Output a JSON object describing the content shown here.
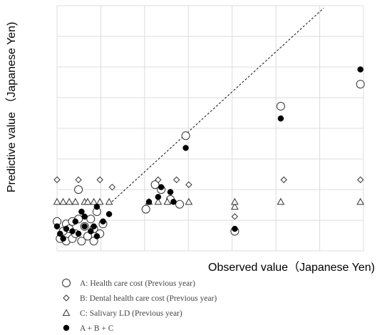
{
  "chart_data": {
    "type": "scatter",
    "title": "",
    "xlabel": "Observed value（Japanese Yen)",
    "ylabel": "Predictive value （Japanese Yen)",
    "xlim": [
      0,
      1
    ],
    "ylim": [
      0,
      1
    ],
    "grid": true,
    "legend_position": "bottom",
    "trend_line": {
      "style": "dashed",
      "x": [
        0.17,
        0.87
      ],
      "y": [
        0.19,
        0.99
      ]
    },
    "series": [
      {
        "name": "A: Health care cost (Previous year)",
        "marker": "open-circle",
        "points": [
          [
            0.0,
            0.12
          ],
          [
            0.01,
            0.05
          ],
          [
            0.02,
            0.08
          ],
          [
            0.03,
            0.11
          ],
          [
            0.03,
            0.04
          ],
          [
            0.04,
            0.09
          ],
          [
            0.05,
            0.05
          ],
          [
            0.05,
            0.12
          ],
          [
            0.06,
            0.07
          ],
          [
            0.07,
            0.13
          ],
          [
            0.07,
            0.25
          ],
          [
            0.08,
            0.04
          ],
          [
            0.09,
            0.1
          ],
          [
            0.1,
            0.06
          ],
          [
            0.11,
            0.13
          ],
          [
            0.12,
            0.09
          ],
          [
            0.12,
            0.04
          ],
          [
            0.13,
            0.16
          ],
          [
            0.14,
            0.07
          ],
          [
            0.15,
            0.11
          ],
          [
            0.29,
            0.17
          ],
          [
            0.32,
            0.27
          ],
          [
            0.34,
            0.25
          ],
          [
            0.37,
            0.21
          ],
          [
            0.4,
            0.19
          ],
          [
            0.42,
            0.47
          ],
          [
            0.58,
            0.08
          ],
          [
            0.73,
            0.59
          ],
          [
            0.99,
            0.68
          ]
        ]
      },
      {
        "name": "B: Dental health care cost (Previous year)",
        "marker": "open-diamond",
        "points": [
          [
            0.0,
            0.29
          ],
          [
            0.07,
            0.29
          ],
          [
            0.14,
            0.29
          ],
          [
            0.18,
            0.26
          ],
          [
            0.33,
            0.29
          ],
          [
            0.37,
            0.24
          ],
          [
            0.39,
            0.29
          ],
          [
            0.43,
            0.27
          ],
          [
            0.58,
            0.14
          ],
          [
            0.74,
            0.29
          ],
          [
            0.99,
            0.29
          ]
        ]
      },
      {
        "name": "C: Salivary LD (Previous year)",
        "marker": "open-triangle",
        "points": [
          [
            0.0,
            0.2
          ],
          [
            0.02,
            0.2
          ],
          [
            0.04,
            0.2
          ],
          [
            0.06,
            0.2
          ],
          [
            0.09,
            0.2
          ],
          [
            0.1,
            0.2
          ],
          [
            0.12,
            0.2
          ],
          [
            0.14,
            0.2
          ],
          [
            0.17,
            0.2
          ],
          [
            0.3,
            0.2
          ],
          [
            0.33,
            0.2
          ],
          [
            0.36,
            0.2
          ],
          [
            0.43,
            0.2
          ],
          [
            0.58,
            0.18
          ],
          [
            0.58,
            0.2
          ],
          [
            0.73,
            0.2
          ],
          [
            0.99,
            0.2
          ]
        ]
      },
      {
        "name": "A + B + C",
        "marker": "filled-circle",
        "points": [
          [
            0.0,
            0.1
          ],
          [
            0.01,
            0.07
          ],
          [
            0.02,
            0.05
          ],
          [
            0.03,
            0.09
          ],
          [
            0.05,
            0.08
          ],
          [
            0.06,
            0.12
          ],
          [
            0.07,
            0.07
          ],
          [
            0.08,
            0.16
          ],
          [
            0.09,
            0.1
          ],
          [
            0.09,
            0.14
          ],
          [
            0.11,
            0.08
          ],
          [
            0.12,
            0.1
          ],
          [
            0.13,
            0.06
          ],
          [
            0.13,
            0.18
          ],
          [
            0.15,
            0.12
          ],
          [
            0.17,
            0.15
          ],
          [
            0.3,
            0.2
          ],
          [
            0.33,
            0.22
          ],
          [
            0.34,
            0.26
          ],
          [
            0.37,
            0.24
          ],
          [
            0.38,
            0.2
          ],
          [
            0.42,
            0.42
          ],
          [
            0.58,
            0.09
          ],
          [
            0.73,
            0.54
          ],
          [
            0.99,
            0.74
          ]
        ]
      }
    ]
  }
}
